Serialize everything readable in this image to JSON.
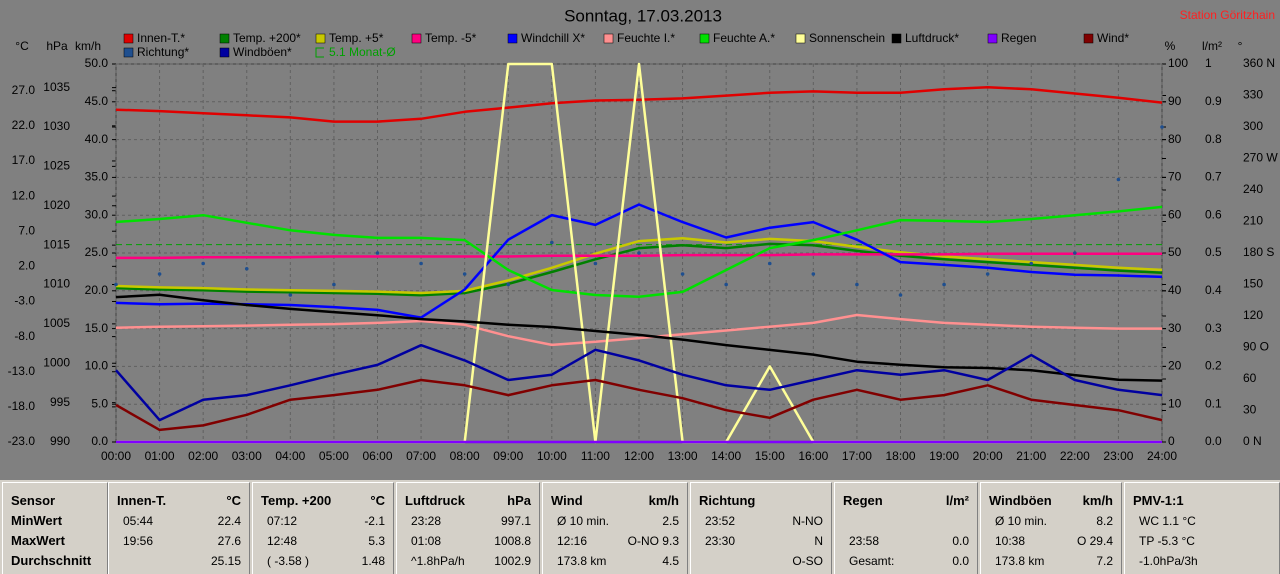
{
  "chart_data": {
    "type": "line",
    "title": "Sonntag, 17.03.2013",
    "station": "Station Göritzhain",
    "categories": [
      "00:00",
      "01:00",
      "02:00",
      "03:00",
      "04:00",
      "05:00",
      "06:00",
      "07:00",
      "08:00",
      "09:00",
      "10:00",
      "11:00",
      "12:00",
      "13:00",
      "14:00",
      "15:00",
      "16:00",
      "17:00",
      "18:00",
      "19:00",
      "20:00",
      "21:00",
      "22:00",
      "23:00",
      "24:00"
    ],
    "grid": true,
    "axes": [
      {
        "name": "°C",
        "lim": [
          -23,
          30.8
        ],
        "ticks": [
          {
            "value": -23,
            "label": "-23.0"
          },
          {
            "value": -18,
            "label": "-18.0"
          },
          {
            "value": -13,
            "label": "-13.0"
          },
          {
            "value": -8,
            "label": "-8.0"
          },
          {
            "value": -3,
            "label": "-3.0"
          },
          {
            "value": 2,
            "label": "2.0"
          },
          {
            "value": 7,
            "label": "7.0"
          },
          {
            "value": 12,
            "label": "12.0"
          },
          {
            "value": 17,
            "label": "17.0"
          },
          {
            "value": 22,
            "label": "22.0"
          },
          {
            "value": 27,
            "label": "27.0"
          }
        ]
      },
      {
        "name": "hPa",
        "lim": [
          990,
          1038
        ],
        "ticks": [
          990,
          995,
          1000,
          1005,
          1010,
          1015,
          1020,
          1025,
          1030,
          1035
        ]
      },
      {
        "name": "km/h",
        "lim": [
          0,
          50
        ],
        "ticks": [
          {
            "value": 0,
            "label": "0.0"
          },
          {
            "value": 5,
            "label": "5.0"
          },
          {
            "value": 10,
            "label": "10.0"
          },
          {
            "value": 15,
            "label": "15.0"
          },
          {
            "value": 20,
            "label": "20.0"
          },
          {
            "value": 25,
            "label": "25.0"
          },
          {
            "value": 30,
            "label": "30.0"
          },
          {
            "value": 35,
            "label": "35.0"
          },
          {
            "value": 40,
            "label": "40.0"
          },
          {
            "value": 45,
            "label": "45.0"
          },
          {
            "value": 50,
            "label": "50.0"
          }
        ]
      },
      {
        "name": "%",
        "lim": [
          0,
          100
        ],
        "ticks": [
          0,
          10,
          20,
          30,
          40,
          50,
          60,
          70,
          80,
          90,
          100
        ]
      },
      {
        "name": "l/m²",
        "lim": [
          0,
          1
        ],
        "ticks": [
          {
            "value": 0,
            "label": "0.0"
          },
          0.1,
          0.2,
          0.3,
          0.4,
          0.5,
          0.6,
          0.7,
          0.8,
          0.9,
          1
        ]
      },
      {
        "name": "°",
        "lim": [
          0,
          360
        ],
        "ticks": [
          {
            "value": 0,
            "label": "0 N"
          },
          30,
          60,
          {
            "value": 90,
            "label": "90 O"
          },
          120,
          150,
          {
            "value": 180,
            "label": "180 S"
          },
          210,
          240,
          {
            "value": 270,
            "label": "270 W"
          },
          300,
          330,
          {
            "value": 360,
            "label": "360 N"
          }
        ]
      }
    ],
    "series": [
      {
        "name": "Innen-T.*",
        "color": "#e00000",
        "axis": "°C",
        "values": [
          24.3,
          24.1,
          23.8,
          23.5,
          23.2,
          22.6,
          22.6,
          23.0,
          24.0,
          24.6,
          25.2,
          25.6,
          25.7,
          25.9,
          26.3,
          26.7,
          26.9,
          26.7,
          26.7,
          27.2,
          27.5,
          27.2,
          26.6,
          26.0,
          25.3
        ]
      },
      {
        "name": "Temp. +200*",
        "color": "#008000",
        "axis": "°C",
        "values": [
          -1.1,
          -1.3,
          -1.4,
          -1.6,
          -1.7,
          -1.8,
          -1.9,
          -2.1,
          -1.8,
          -0.5,
          1.2,
          3.0,
          4.6,
          5.0,
          4.6,
          5.2,
          5.0,
          4.2,
          3.5,
          3.0,
          2.6,
          2.2,
          1.8,
          1.4,
          1.1
        ]
      },
      {
        "name": "Temp. +5*",
        "color": "#c8c800",
        "axis": "°C",
        "values": [
          -0.8,
          -1.0,
          -1.1,
          -1.3,
          -1.4,
          -1.5,
          -1.6,
          -1.8,
          -1.5,
          0,
          1.8,
          3.8,
          5.6,
          6.0,
          5.4,
          5.9,
          5.6,
          4.8,
          4.0,
          3.4,
          3.0,
          2.6,
          2.2,
          1.8,
          1.5
        ]
      },
      {
        "name": "Temp. -5*",
        "color": "#ff0080",
        "axis": "°C",
        "values": [
          3.2,
          3.2,
          3.3,
          3.3,
          3.3,
          3.4,
          3.4,
          3.4,
          3.4,
          3.4,
          3.5,
          3.5,
          3.5,
          3.6,
          3.6,
          3.6,
          3.7,
          3.7,
          3.7,
          3.7,
          3.8,
          3.8,
          3.8,
          3.8,
          3.8
        ]
      },
      {
        "name": "Windchill X*",
        "color": "#0000ff",
        "axis": "°C",
        "values": [
          -3.2,
          -3.4,
          -3.3,
          -3.4,
          -3.5,
          -3.8,
          -4.2,
          -5.3,
          -1.3,
          5.8,
          9.3,
          7.9,
          10.8,
          8.3,
          6.1,
          7.5,
          8.3,
          5.8,
          2.6,
          2.2,
          1.8,
          1.2,
          0.8,
          0.7,
          0.5
        ]
      },
      {
        "name": "Feuchte I.*",
        "color": "#ff9090",
        "axis": "%",
        "values": [
          30.2,
          30.5,
          30.6,
          30.8,
          31,
          31.2,
          31.5,
          32,
          31,
          28,
          25.7,
          26.5,
          27.5,
          28.5,
          29.5,
          30.5,
          31.5,
          33.6,
          32.5,
          31.5,
          31,
          30.5,
          30.2,
          30,
          30
        ]
      },
      {
        "name": "Feuchte A.*",
        "color": "#00e000",
        "axis": "%",
        "values": [
          58.2,
          59,
          60,
          58,
          56,
          54.8,
          54,
          54,
          53.4,
          45.5,
          40.2,
          38.9,
          38.4,
          39.7,
          45.5,
          51.3,
          53.4,
          56,
          58.7,
          58.5,
          58.2,
          59,
          60,
          61,
          62.2
        ]
      },
      {
        "name": "Sonnenschein",
        "color": "#ffff99",
        "axis": "%",
        "values": [
          0,
          0,
          0,
          0,
          0,
          0,
          0,
          0,
          0,
          100,
          100,
          0,
          100,
          0,
          0,
          20,
          0,
          0,
          0,
          0,
          0,
          0,
          0,
          0,
          0
        ]
      },
      {
        "name": "Luftdruck*",
        "color": "#000000",
        "axis": "hPa",
        "values": [
          1008.4,
          1008.7,
          1008.0,
          1007.4,
          1006.9,
          1006.5,
          1006.1,
          1005.6,
          1005.3,
          1004.9,
          1004.6,
          1004.1,
          1003.6,
          1003.0,
          1002.3,
          1001.7,
          1001.1,
          1000.2,
          999.8,
          999.5,
          999.4,
          999.1,
          998.5,
          997.9,
          997.8
        ]
      },
      {
        "name": "Regen",
        "color": "#8000ff",
        "axis": "l/m²",
        "values": [
          0,
          0,
          0,
          0,
          0,
          0,
          0,
          0,
          0,
          0,
          0,
          0,
          0,
          0,
          0,
          0,
          0,
          0,
          0,
          0,
          0,
          0,
          0,
          0,
          0
        ]
      },
      {
        "name": "Wind*",
        "color": "#800000",
        "axis": "km/h",
        "values": [
          4.9,
          1.6,
          2.2,
          3.6,
          5.6,
          6.2,
          6.9,
          8.2,
          7.5,
          6.2,
          7.5,
          8.2,
          6.9,
          5.8,
          4.2,
          3.2,
          5.6,
          6.9,
          5.6,
          6.2,
          7.5,
          5.6,
          4.9,
          4.2,
          2.9
        ]
      },
      {
        "name": "Richtung*",
        "color": "#1f4f8f",
        "axis": "°",
        "style": "dots",
        "values": [
          150,
          160,
          170,
          165,
          140,
          150,
          180,
          170,
          160,
          150,
          190,
          170,
          180,
          160,
          150,
          170,
          160,
          150,
          140,
          150,
          160,
          170,
          180,
          250,
          300
        ]
      },
      {
        "name": "Windböen*",
        "color": "#0000a0",
        "axis": "km/h",
        "values": [
          9.5,
          2.9,
          5.6,
          6.2,
          7.5,
          8.9,
          10.2,
          12.8,
          10.8,
          8.2,
          8.9,
          12.2,
          10.8,
          8.9,
          7.5,
          6.9,
          8.2,
          9.5,
          8.9,
          9.5,
          8.2,
          11.5,
          8.2,
          6.9,
          6.2
        ]
      }
    ],
    "reference_lines": [
      {
        "label": "5.1 Monat-Ø",
        "value": 5.1,
        "axis": "°C",
        "color": "#00a000"
      }
    ]
  },
  "stats_table": {
    "row_labels": [
      "Sensor",
      "MinWert",
      "MaxWert",
      "Durchschnitt"
    ],
    "panels": [
      {
        "name": "Innen-T.",
        "unit": "°C",
        "rows": [
          {
            "left": "05:44",
            "right": "22.4"
          },
          {
            "left": "19:56",
            "right": "27.6"
          },
          {
            "right": "25.15"
          }
        ]
      },
      {
        "name": "Temp. +200",
        "unit": "°C",
        "rows": [
          {
            "left": "07:12",
            "right": "-2.1"
          },
          {
            "left": "12:48",
            "right": "5.3"
          },
          {
            "left": "( -3.58 )",
            "right": "1.48"
          }
        ]
      },
      {
        "name": "Luftdruck",
        "unit": "hPa",
        "rows": [
          {
            "left": "23:28",
            "right": "997.1"
          },
          {
            "left": "01:08",
            "right": "1008.8"
          },
          {
            "left": "^1.8hPa/h",
            "right": "1002.9"
          }
        ]
      },
      {
        "name": "Wind",
        "unit": "km/h",
        "rows": [
          {
            "left": "Ø 10 min.",
            "right": "2.5"
          },
          {
            "left": "12:16",
            "right": "O-NO 9.3"
          },
          {
            "left": "173.8 km",
            "right": "4.5"
          }
        ]
      },
      {
        "name": "Richtung",
        "rows": [
          {
            "left": "23:52",
            "right": "N-NO"
          },
          {
            "left": "23:30",
            "right": "N"
          },
          {
            "right": "O-SO"
          }
        ]
      },
      {
        "name": "Regen",
        "unit": "l/m²",
        "rows": [
          {},
          {
            "left": "23:58",
            "right": "0.0"
          },
          {
            "left": "Gesamt:",
            "right": "0.0"
          }
        ]
      },
      {
        "name": "Windböen",
        "unit": "km/h",
        "rows": [
          {
            "left": "Ø 10 min.",
            "right": "8.2"
          },
          {
            "left": "10:38",
            "right": "O 29.4"
          },
          {
            "left": "173.8 km",
            "right": "7.2"
          }
        ]
      },
      {
        "name": "PMV-1:1",
        "rows": [
          {
            "left": "WC 1.1 °C"
          },
          {
            "left": "TP -5.3 °C"
          },
          {
            "left": "-1.0hPa/3h"
          }
        ]
      }
    ]
  }
}
